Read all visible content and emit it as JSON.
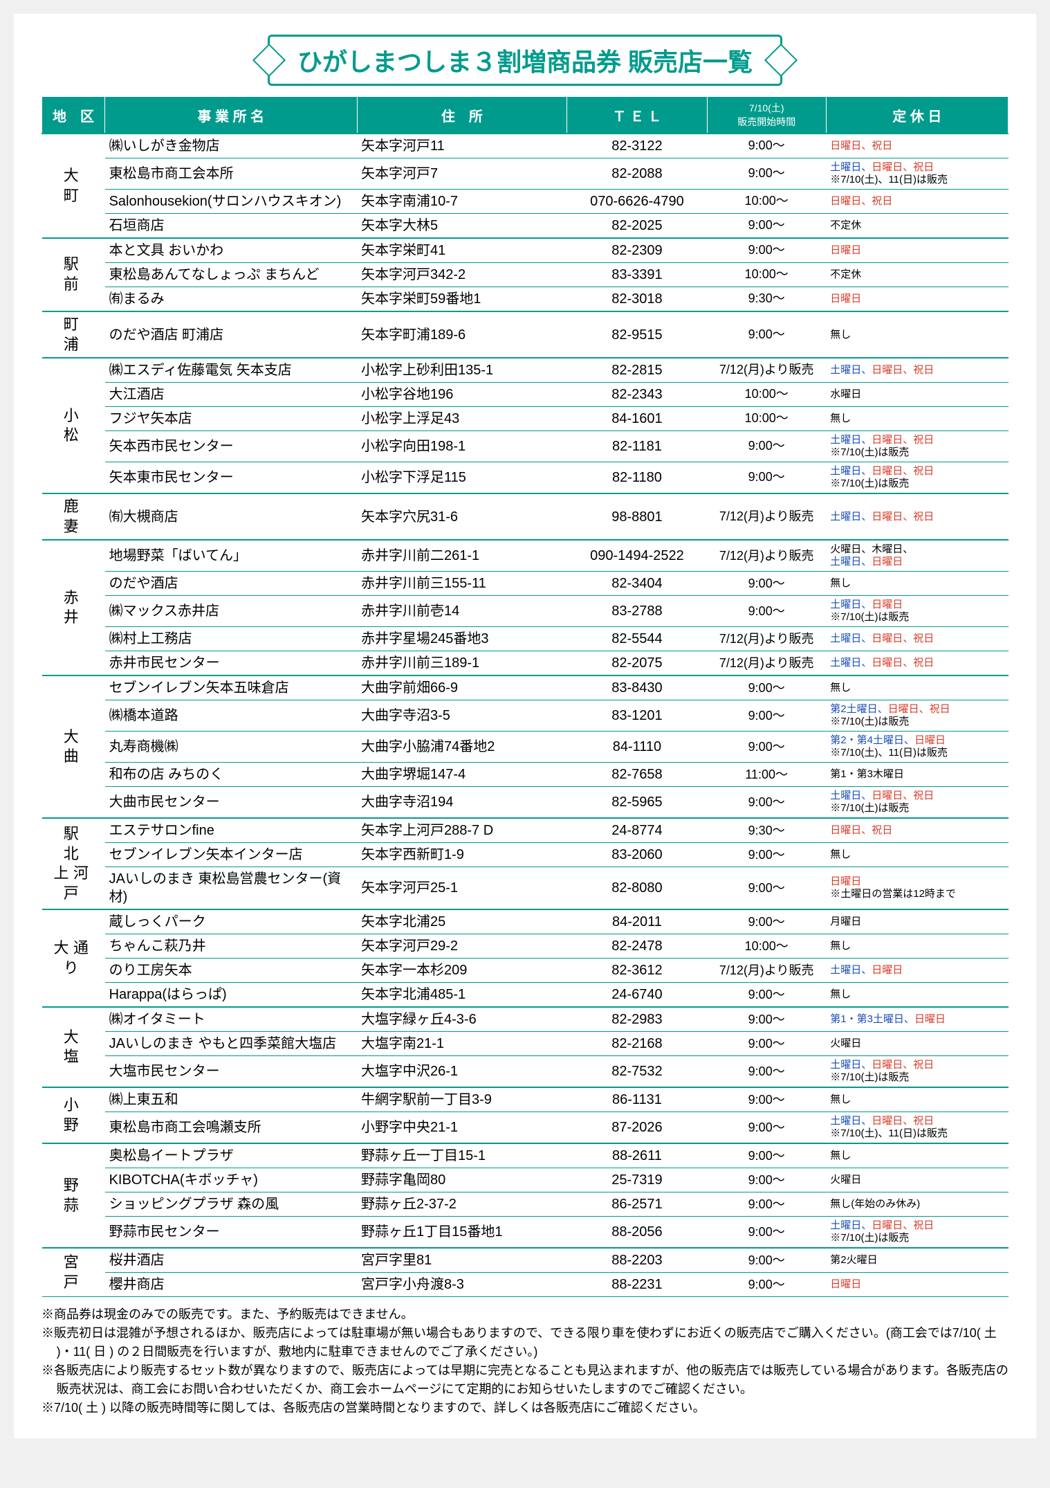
{
  "title": "ひがしまつしま３割増商品券 販売店一覧",
  "headers": {
    "district": "地　区",
    "name": "事 業 所 名",
    "addr": "住　所",
    "tel": "Ｔ Ｅ Ｌ",
    "time_top": "7/10(土)",
    "time_bottom": "販売開始時間",
    "holiday": "定 休 日"
  },
  "districts": [
    {
      "name": "大　町",
      "rows": [
        {
          "name": "㈱いしがき金物店",
          "addr": "矢本字河戸11",
          "tel": "82-3122",
          "time": "9:00～",
          "holiday": [
            {
              "t": "日曜日、祝日",
              "c": "red"
            }
          ]
        },
        {
          "name": "東松島市商工会本所",
          "addr": "矢本字河戸7",
          "tel": "82-2088",
          "time": "9:00～",
          "holiday": [
            {
              "t": "土曜日、",
              "c": "blue"
            },
            {
              "t": "日曜日、祝日",
              "c": "red"
            },
            {
              "t": "\n※7/10(土)、11(日)は販売",
              "c": ""
            }
          ]
        },
        {
          "name": "Salonhousekion(サロンハウスキオン)",
          "addr": "矢本字南浦10-7",
          "tel": "070-6626-4790",
          "time": "10:00～",
          "holiday": [
            {
              "t": "日曜日、祝日",
              "c": "red"
            }
          ]
        },
        {
          "name": "石垣商店",
          "addr": "矢本字大林5",
          "tel": "82-2025",
          "time": "9:00～",
          "holiday": [
            {
              "t": "不定休",
              "c": ""
            }
          ]
        }
      ]
    },
    {
      "name": "駅　前",
      "rows": [
        {
          "name": "本と文具 おいかわ",
          "addr": "矢本字栄町41",
          "tel": "82-2309",
          "time": "9:00～",
          "holiday": [
            {
              "t": "日曜日",
              "c": "red"
            }
          ]
        },
        {
          "name": "東松島あんてなしょっぷ まちんど",
          "addr": "矢本字河戸342-2",
          "tel": "83-3391",
          "time": "10:00～",
          "holiday": [
            {
              "t": "不定休",
              "c": ""
            }
          ]
        },
        {
          "name": "㈲まるみ",
          "addr": "矢本字栄町59番地1",
          "tel": "82-3018",
          "time": "9:30～",
          "holiday": [
            {
              "t": "日曜日",
              "c": "red"
            }
          ]
        }
      ]
    },
    {
      "name": "町　浦",
      "rows": [
        {
          "name": "のだや酒店 町浦店",
          "addr": "矢本字町浦189-6",
          "tel": "82-9515",
          "time": "9:00～",
          "holiday": [
            {
              "t": "無し",
              "c": ""
            }
          ]
        }
      ]
    },
    {
      "name": "小　松",
      "rows": [
        {
          "name": "㈱エスディ佐藤電気 矢本支店",
          "addr": "小松字上砂利田135-1",
          "tel": "82-2815",
          "time": "7/12(月)より販売",
          "holiday": [
            {
              "t": "土曜日、",
              "c": "blue"
            },
            {
              "t": "日曜日、祝日",
              "c": "red"
            }
          ]
        },
        {
          "name": "大江酒店",
          "addr": "小松字谷地196",
          "tel": "82-2343",
          "time": "10:00～",
          "holiday": [
            {
              "t": "水曜日",
              "c": ""
            }
          ]
        },
        {
          "name": "フジヤ矢本店",
          "addr": "小松字上浮足43",
          "tel": "84-1601",
          "time": "10:00～",
          "holiday": [
            {
              "t": "無し",
              "c": ""
            }
          ]
        },
        {
          "name": "矢本西市民センター",
          "addr": "小松字向田198-1",
          "tel": "82-1181",
          "time": "9:00～",
          "holiday": [
            {
              "t": "土曜日、",
              "c": "blue"
            },
            {
              "t": "日曜日、祝日",
              "c": "red"
            },
            {
              "t": "\n※7/10(土)は販売",
              "c": ""
            }
          ]
        },
        {
          "name": "矢本東市民センター",
          "addr": "小松字下浮足115",
          "tel": "82-1180",
          "time": "9:00～",
          "holiday": [
            {
              "t": "土曜日、",
              "c": "blue"
            },
            {
              "t": "日曜日、祝日",
              "c": "red"
            },
            {
              "t": "\n※7/10(土)は販売",
              "c": ""
            }
          ]
        }
      ]
    },
    {
      "name": "鹿　妻",
      "rows": [
        {
          "name": "㈲大槻商店",
          "addr": "矢本字穴尻31-6",
          "tel": "98-8801",
          "time": "7/12(月)より販売",
          "holiday": [
            {
              "t": "土曜日、",
              "c": "blue"
            },
            {
              "t": "日曜日、祝日",
              "c": "red"
            }
          ]
        }
      ]
    },
    {
      "name": "赤　井",
      "rows": [
        {
          "name": "地場野菜「ばいてん」",
          "addr": "赤井字川前二261-1",
          "tel": "090-1494-2522",
          "time": "7/12(月)より販売",
          "holiday": [
            {
              "t": "火曜日、木曜日、\n",
              "c": ""
            },
            {
              "t": "土曜日、",
              "c": "blue"
            },
            {
              "t": "日曜日",
              "c": "red"
            }
          ]
        },
        {
          "name": "のだや酒店",
          "addr": "赤井字川前三155-11",
          "tel": "82-3404",
          "time": "9:00～",
          "holiday": [
            {
              "t": "無し",
              "c": ""
            }
          ]
        },
        {
          "name": "㈱マックス赤井店",
          "addr": "赤井字川前壱14",
          "tel": "83-2788",
          "time": "9:00～",
          "holiday": [
            {
              "t": "土曜日、",
              "c": "blue"
            },
            {
              "t": "日曜日",
              "c": "red"
            },
            {
              "t": "\n※7/10(土)は販売",
              "c": ""
            }
          ]
        },
        {
          "name": "㈱村上工務店",
          "addr": "赤井字星場245番地3",
          "tel": "82-5544",
          "time": "7/12(月)より販売",
          "holiday": [
            {
              "t": "土曜日、",
              "c": "blue"
            },
            {
              "t": "日曜日、祝日",
              "c": "red"
            }
          ]
        },
        {
          "name": "赤井市民センター",
          "addr": "赤井字川前三189-1",
          "tel": "82-2075",
          "time": "7/12(月)より販売",
          "holiday": [
            {
              "t": "土曜日、",
              "c": "blue"
            },
            {
              "t": "日曜日、祝日",
              "c": "red"
            }
          ]
        }
      ]
    },
    {
      "name": "大　曲",
      "rows": [
        {
          "name": "セブンイレブン矢本五味倉店",
          "addr": "大曲字前畑66-9",
          "tel": "83-8430",
          "time": "9:00～",
          "holiday": [
            {
              "t": "無し",
              "c": ""
            }
          ]
        },
        {
          "name": "㈱橋本道路",
          "addr": "大曲字寺沼3-5",
          "tel": "83-1201",
          "time": "9:00～",
          "holiday": [
            {
              "t": "第2土曜日、",
              "c": "blue"
            },
            {
              "t": "日曜日、祝日",
              "c": "red"
            },
            {
              "t": "\n※7/10(土)は販売",
              "c": ""
            }
          ]
        },
        {
          "name": "丸寿商機㈱",
          "addr": "大曲字小脇浦74番地2",
          "tel": "84-1110",
          "time": "9:00～",
          "holiday": [
            {
              "t": "第2・第4土曜日、",
              "c": "blue"
            },
            {
              "t": "日曜日",
              "c": "red"
            },
            {
              "t": "\n※7/10(土)、11(日)は販売",
              "c": ""
            }
          ]
        },
        {
          "name": "和布の店 みちのく",
          "addr": "大曲字堺堀147-4",
          "tel": "82-7658",
          "time": "11:00～",
          "holiday": [
            {
              "t": "第1・第3木曜日",
              "c": ""
            }
          ]
        },
        {
          "name": "大曲市民センター",
          "addr": "大曲字寺沼194",
          "tel": "82-5965",
          "time": "9:00～",
          "holiday": [
            {
              "t": "土曜日、",
              "c": "blue"
            },
            {
              "t": "日曜日、祝日",
              "c": "red"
            },
            {
              "t": "\n※7/10(土)は販売",
              "c": ""
            }
          ]
        }
      ]
    },
    {
      "name": "駅　北\n上河戸",
      "rows": [
        {
          "name": "エステサロンfine",
          "addr": "矢本字上河戸288-7 D",
          "tel": "24-8774",
          "time": "9:30～",
          "holiday": [
            {
              "t": "日曜日、祝日",
              "c": "red"
            }
          ]
        },
        {
          "name": "セブンイレブン矢本インター店",
          "addr": "矢本字西新町1-9",
          "tel": "83-2060",
          "time": "9:00～",
          "holiday": [
            {
              "t": "無し",
              "c": ""
            }
          ]
        },
        {
          "name": "JAいしのまき 東松島営農センター(資材)",
          "addr": "矢本字河戸25-1",
          "tel": "82-8080",
          "time": "9:00～",
          "holiday": [
            {
              "t": "日曜日",
              "c": "red"
            },
            {
              "t": "\n※土曜日の営業は12時まで",
              "c": ""
            }
          ]
        }
      ]
    },
    {
      "name": "大通り",
      "rows": [
        {
          "name": "蔵しっくパーク",
          "addr": "矢本字北浦25",
          "tel": "84-2011",
          "time": "9:00～",
          "holiday": [
            {
              "t": "月曜日",
              "c": ""
            }
          ]
        },
        {
          "name": "ちゃんこ萩乃井",
          "addr": "矢本字河戸29-2",
          "tel": "82-2478",
          "time": "10:00～",
          "holiday": [
            {
              "t": "無し",
              "c": ""
            }
          ]
        },
        {
          "name": "のり工房矢本",
          "addr": "矢本字一本杉209",
          "tel": "82-3612",
          "time": "7/12(月)より販売",
          "holiday": [
            {
              "t": "土曜日、",
              "c": "blue"
            },
            {
              "t": "日曜日",
              "c": "red"
            }
          ]
        },
        {
          "name": "Harappa(はらっぱ)",
          "addr": "矢本字北浦485-1",
          "tel": "24-6740",
          "time": "9:00～",
          "holiday": [
            {
              "t": "無し",
              "c": ""
            }
          ]
        }
      ]
    },
    {
      "name": "大　塩",
      "rows": [
        {
          "name": "㈱オイタミート",
          "addr": "大塩字緑ヶ丘4-3-6",
          "tel": "82-2983",
          "time": "9:00～",
          "holiday": [
            {
              "t": "第1・第3土曜日、",
              "c": "blue"
            },
            {
              "t": "日曜日",
              "c": "red"
            }
          ]
        },
        {
          "name": "JAいしのまき やもと四季菜館大塩店",
          "addr": "大塩字南21-1",
          "tel": "82-2168",
          "time": "9:00～",
          "holiday": [
            {
              "t": "火曜日",
              "c": ""
            }
          ]
        },
        {
          "name": "大塩市民センター",
          "addr": "大塩字中沢26-1",
          "tel": "82-7532",
          "time": "9:00～",
          "holiday": [
            {
              "t": "土曜日、",
              "c": "blue"
            },
            {
              "t": "日曜日、祝日",
              "c": "red"
            },
            {
              "t": "\n※7/10(土)は販売",
              "c": ""
            }
          ]
        }
      ]
    },
    {
      "name": "小　野",
      "rows": [
        {
          "name": "㈱上東五和",
          "addr": "牛網字駅前一丁目3-9",
          "tel": "86-1131",
          "time": "9:00～",
          "holiday": [
            {
              "t": "無し",
              "c": ""
            }
          ]
        },
        {
          "name": "東松島市商工会鳴瀬支所",
          "addr": "小野字中央21-1",
          "tel": "87-2026",
          "time": "9:00～",
          "holiday": [
            {
              "t": "土曜日、",
              "c": "blue"
            },
            {
              "t": "日曜日、祝日",
              "c": "red"
            },
            {
              "t": "\n※7/10(土)、11(日)は販売",
              "c": ""
            }
          ]
        }
      ]
    },
    {
      "name": "野　蒜",
      "rows": [
        {
          "name": "奥松島イートプラザ",
          "addr": "野蒜ヶ丘一丁目15-1",
          "tel": "88-2611",
          "time": "9:00～",
          "holiday": [
            {
              "t": "無し",
              "c": ""
            }
          ]
        },
        {
          "name": "KIBOTCHA(キボッチャ)",
          "addr": "野蒜字亀岡80",
          "tel": "25-7319",
          "time": "9:00～",
          "holiday": [
            {
              "t": "火曜日",
              "c": ""
            }
          ]
        },
        {
          "name": "ショッピングプラザ 森の風",
          "addr": "野蒜ヶ丘2-37-2",
          "tel": "86-2571",
          "time": "9:00～",
          "holiday": [
            {
              "t": "無し(年始のみ休み)",
              "c": ""
            }
          ]
        },
        {
          "name": "野蒜市民センター",
          "addr": "野蒜ヶ丘1丁目15番地1",
          "tel": "88-2056",
          "time": "9:00～",
          "holiday": [
            {
              "t": "土曜日、",
              "c": "blue"
            },
            {
              "t": "日曜日、祝日",
              "c": "red"
            },
            {
              "t": "\n※7/10(土)は販売",
              "c": ""
            }
          ]
        }
      ]
    },
    {
      "name": "宮　戸",
      "rows": [
        {
          "name": "桜井酒店",
          "addr": "宮戸字里81",
          "tel": "88-2203",
          "time": "9:00～",
          "holiday": [
            {
              "t": "第2火曜日",
              "c": ""
            }
          ]
        },
        {
          "name": "櫻井商店",
          "addr": "宮戸字小舟渡8-3",
          "tel": "88-2231",
          "time": "9:00～",
          "holiday": [
            {
              "t": "日曜日",
              "c": "red"
            }
          ]
        }
      ]
    }
  ],
  "notes": [
    "※商品券は現金のみでの販売です。また、予約販売はできません。",
    "※販売初日は混雑が予想されるほか、販売店によっては駐車場が無い場合もありますので、できる限り車を使わずにお近くの販売店でご購入ください。(商工会では7/10( 土 )・11( 日 ) の２日間販売を行いますが、敷地内に駐車できませんのでご了承ください。)",
    "※各販売店により販売するセット数が異なりますので、販売店によっては早期に完売となることも見込まれますが、他の販売店では販売している場合があります。各販売店の販売状況は、商工会にお問い合わせいただくか、商工会ホームページにて定期的にお知らせいたしますのでご確認ください。",
    "※7/10( 土 ) 以降の販売時間等に関しては、各販売店の営業時間となりますので、詳しくは各販売店にご確認ください。"
  ]
}
